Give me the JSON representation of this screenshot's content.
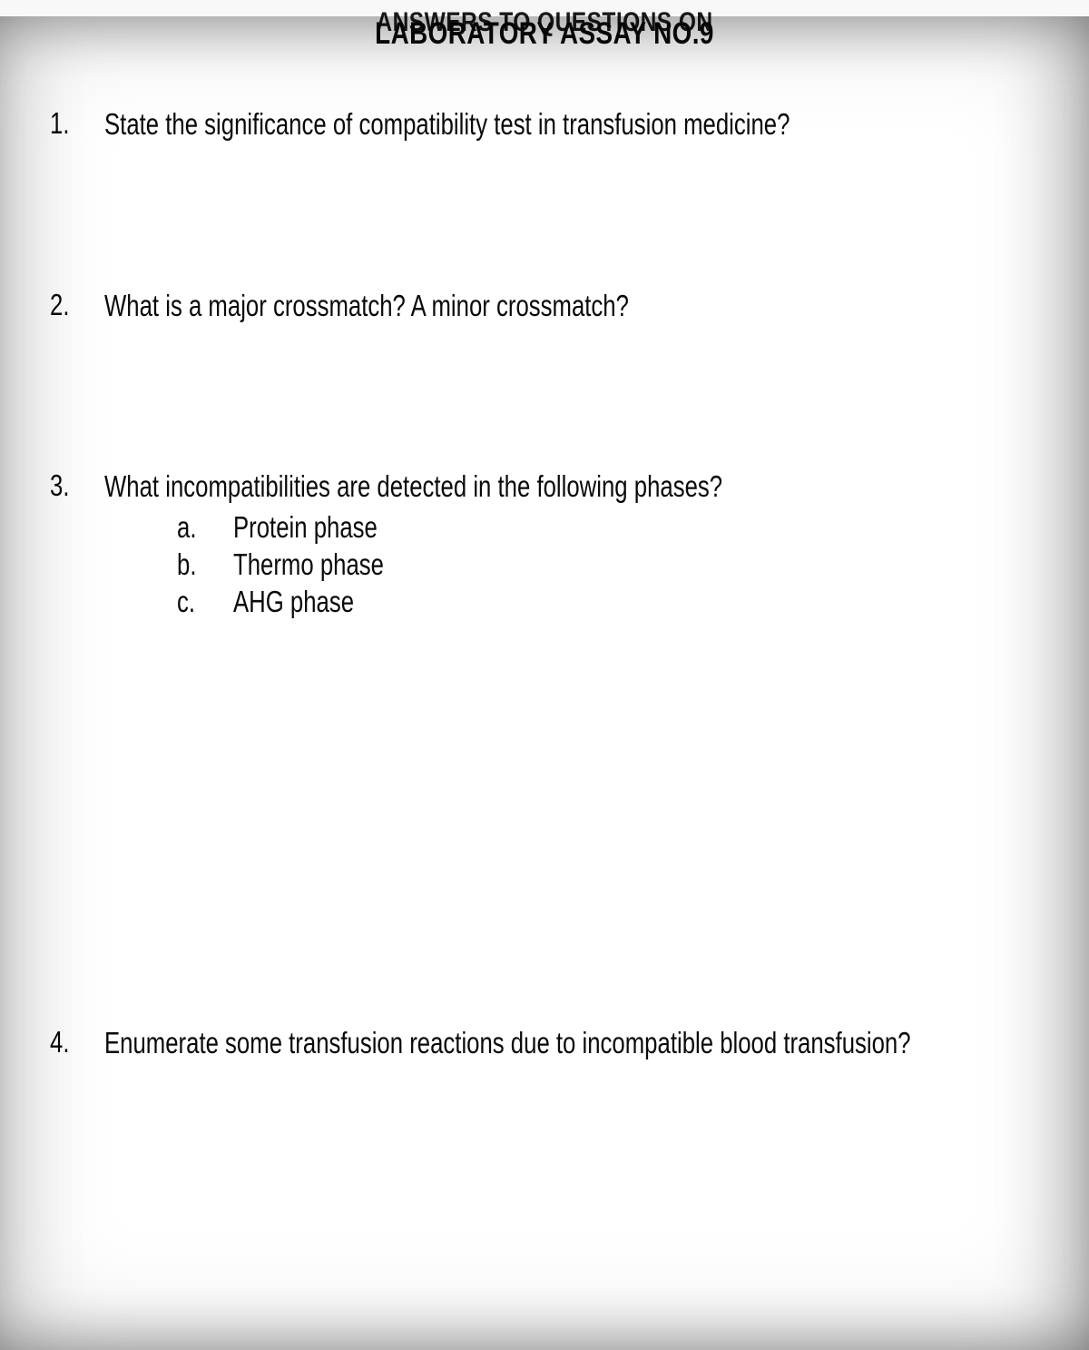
{
  "document": {
    "cutoff_header": "ANSWERS TO QUESTIONS ON",
    "title": "LABORATORY ASSAY NO.9",
    "background_color": "#ffffff",
    "text_color": "#0a0a0a",
    "title_fontsize": 34,
    "body_fontsize": 33,
    "font_family": "Arial",
    "questions": [
      {
        "number": "1.",
        "text": "State the significance of compatibility test in transfusion medicine?"
      },
      {
        "number": "2.",
        "text": "What is a major crossmatch? A minor crossmatch?"
      },
      {
        "number": "3.",
        "text": "What incompatibilities are detected in the following phases?",
        "subitems": [
          {
            "letter": "a.",
            "text": "Protein phase"
          },
          {
            "letter": "b.",
            "text": "Thermo phase"
          },
          {
            "letter": "c.",
            "text": "AHG phase"
          }
        ]
      },
      {
        "number": "4.",
        "text": "Enumerate some transfusion reactions due to incompatible blood transfusion?"
      }
    ]
  }
}
